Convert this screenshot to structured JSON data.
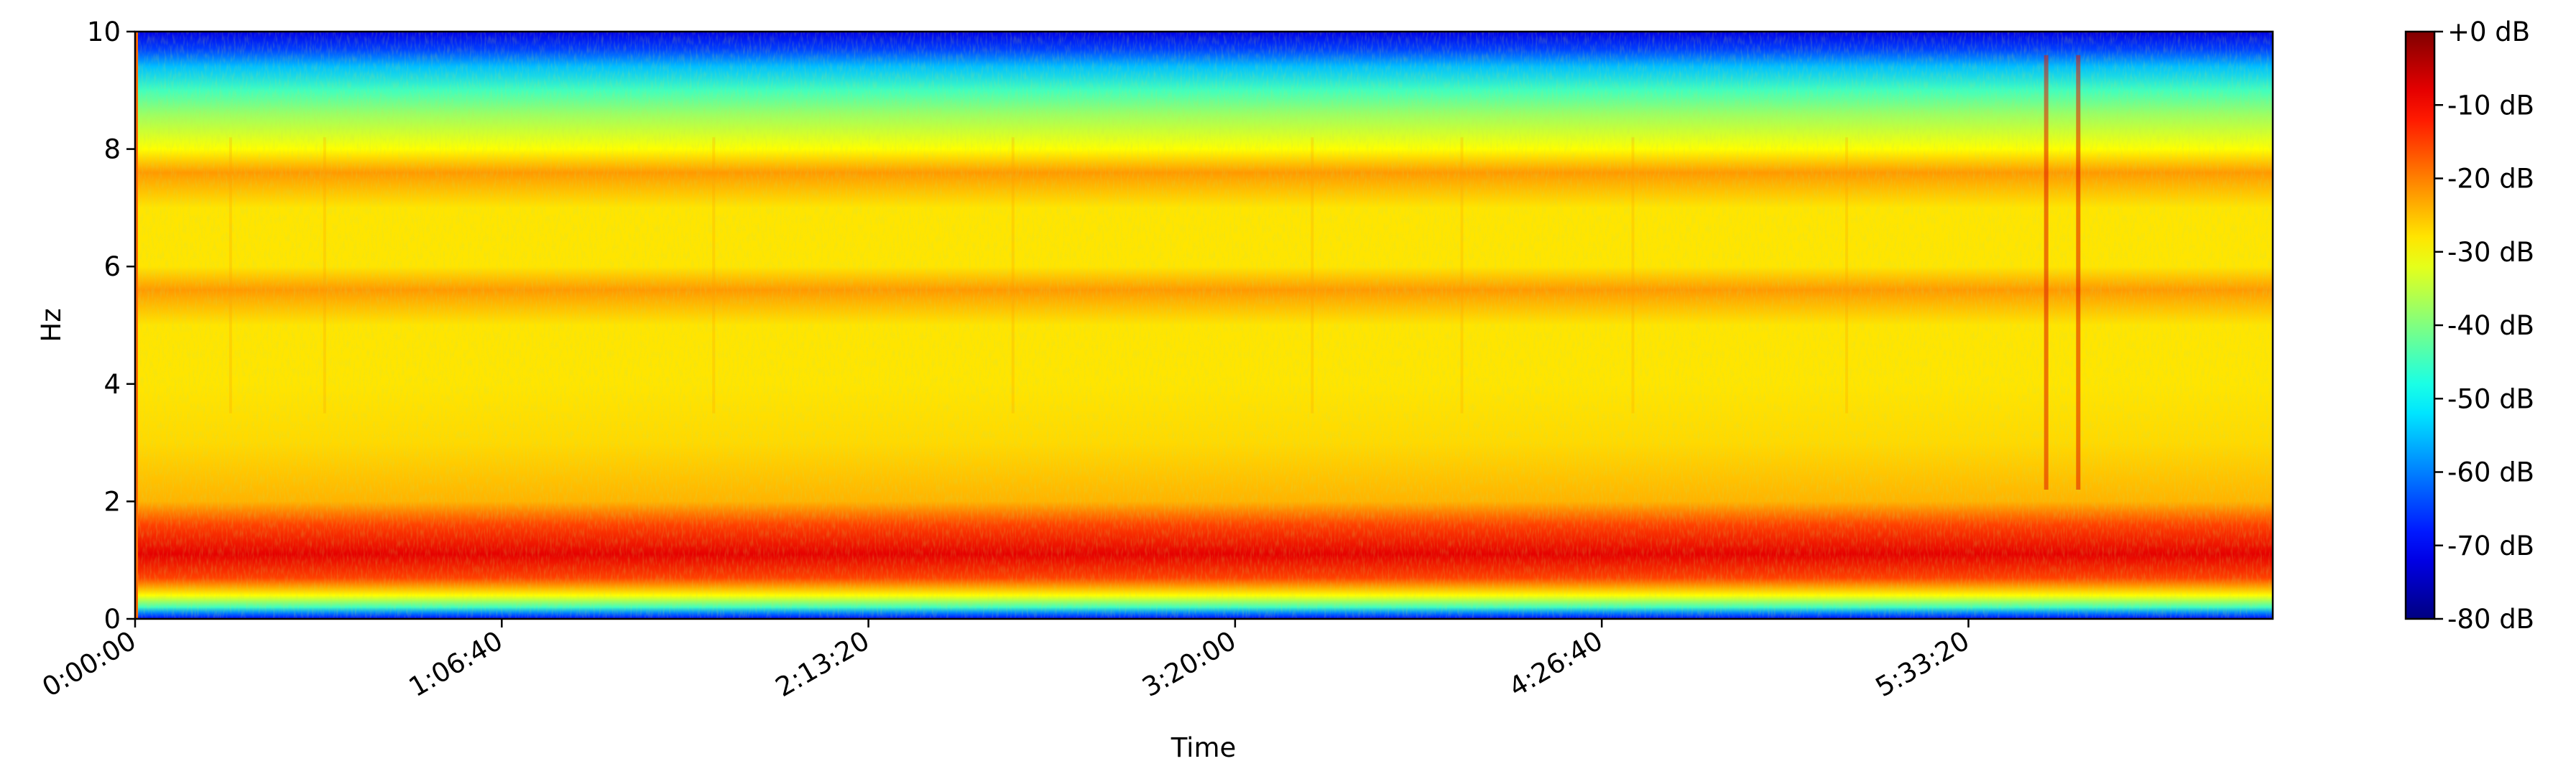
{
  "chart_data": {
    "type": "heatmap",
    "title": "",
    "xlabel": "Time",
    "ylabel": "Hz",
    "ylim": [
      0,
      10
    ],
    "xlim_seconds": [
      0,
      23320
    ],
    "x_ticks": [
      {
        "value": 0,
        "label": "0:00:00"
      },
      {
        "value": 4000,
        "label": "1:06:40"
      },
      {
        "value": 8000,
        "label": "2:13:20"
      },
      {
        "value": 12000,
        "label": "3:20:00"
      },
      {
        "value": 16000,
        "label": "4:26:40"
      },
      {
        "value": 20000,
        "label": "5:33:20"
      }
    ],
    "y_ticks": [
      {
        "value": 0,
        "label": "0"
      },
      {
        "value": 2,
        "label": "2"
      },
      {
        "value": 4,
        "label": "4"
      },
      {
        "value": 6,
        "label": "6"
      },
      {
        "value": 8,
        "label": "8"
      },
      {
        "value": 10,
        "label": "10"
      }
    ],
    "colorbar": {
      "colormap": "jet",
      "range_db": [
        -80,
        0
      ],
      "ticks": [
        {
          "value": 0,
          "label": "+0 dB"
        },
        {
          "value": -10,
          "label": "-10 dB"
        },
        {
          "value": -20,
          "label": "-20 dB"
        },
        {
          "value": -30,
          "label": "-30 dB"
        },
        {
          "value": -40,
          "label": "-40 dB"
        },
        {
          "value": -50,
          "label": "-50 dB"
        },
        {
          "value": -60,
          "label": "-60 dB"
        },
        {
          "value": -70,
          "label": "-70 dB"
        },
        {
          "value": -80,
          "label": "-80 dB"
        }
      ]
    },
    "frequency_profile_db": [
      {
        "hz": 0.0,
        "db": -70
      },
      {
        "hz": 0.1,
        "db": -60
      },
      {
        "hz": 0.2,
        "db": -45
      },
      {
        "hz": 0.4,
        "db": -30
      },
      {
        "hz": 0.7,
        "db": -15
      },
      {
        "hz": 1.1,
        "db": -8
      },
      {
        "hz": 1.6,
        "db": -15
      },
      {
        "hz": 2.0,
        "db": -24
      },
      {
        "hz": 3.0,
        "db": -27
      },
      {
        "hz": 4.0,
        "db": -28
      },
      {
        "hz": 5.0,
        "db": -28
      },
      {
        "hz": 5.6,
        "db": -22
      },
      {
        "hz": 6.0,
        "db": -28
      },
      {
        "hz": 7.0,
        "db": -28
      },
      {
        "hz": 7.6,
        "db": -22
      },
      {
        "hz": 8.0,
        "db": -30
      },
      {
        "hz": 8.6,
        "db": -38
      },
      {
        "hz": 9.0,
        "db": -45
      },
      {
        "hz": 9.4,
        "db": -55
      },
      {
        "hz": 9.7,
        "db": -65
      },
      {
        "hz": 10.0,
        "db": -72
      }
    ]
  }
}
